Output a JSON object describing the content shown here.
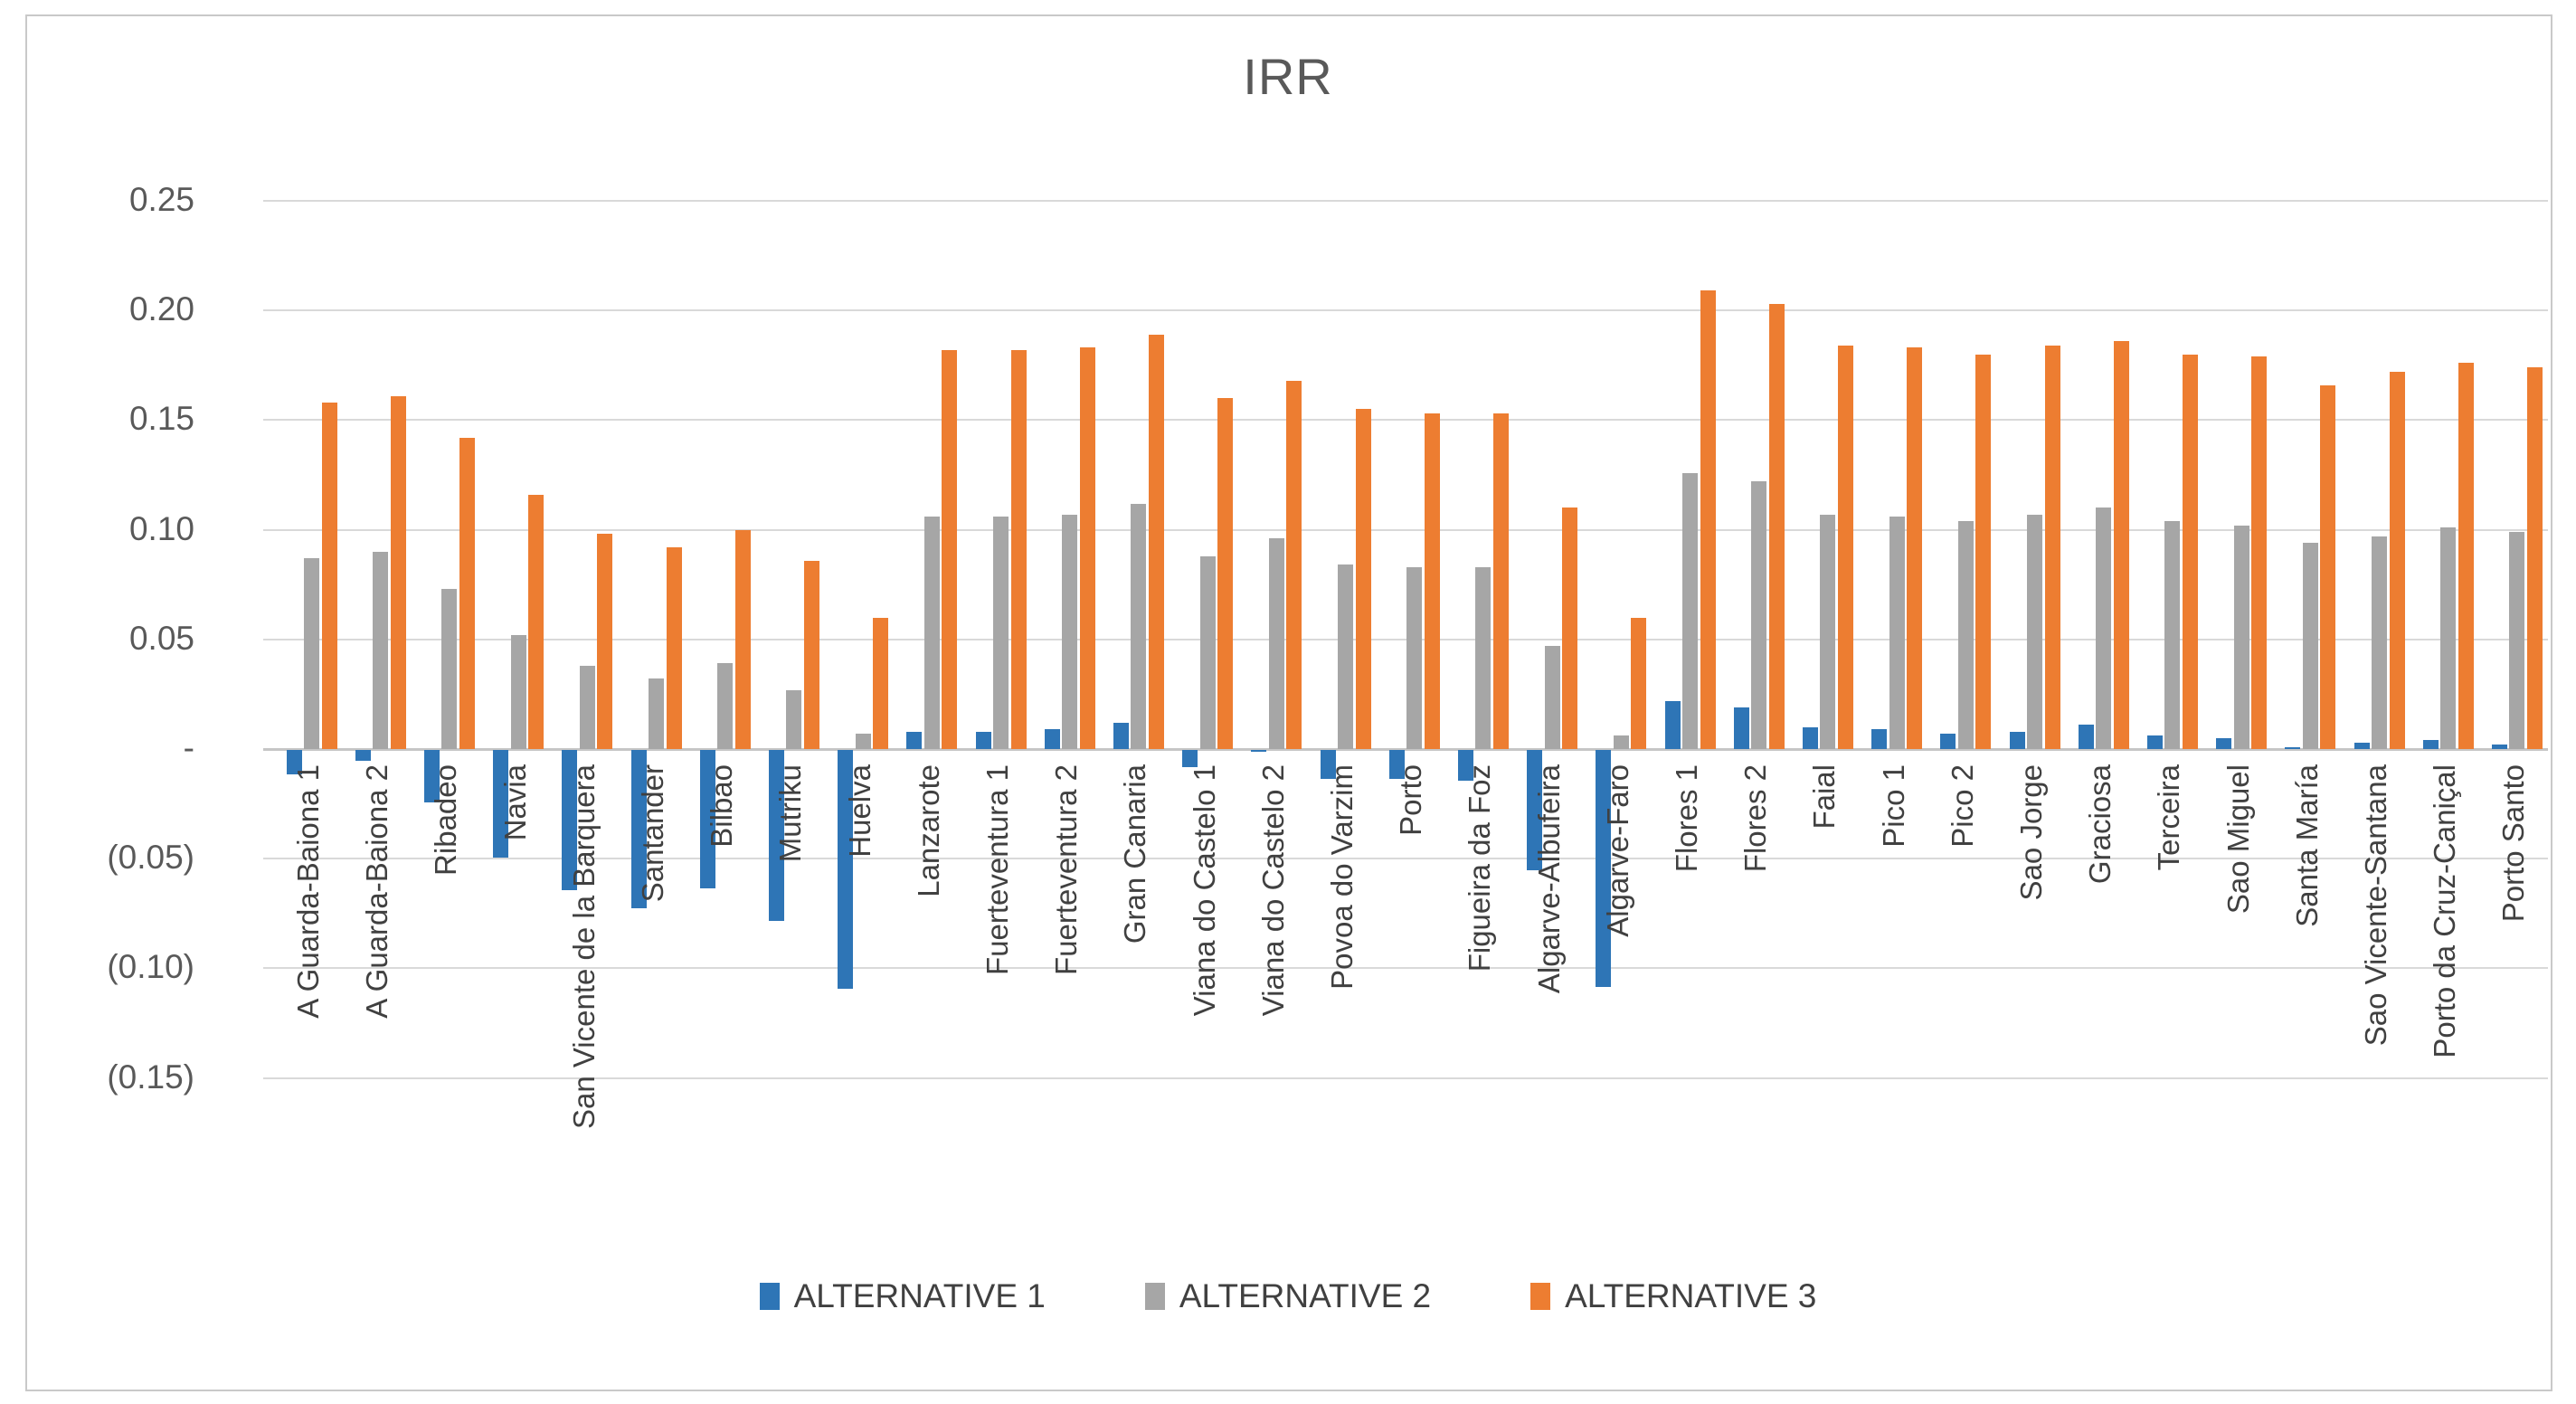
{
  "title": "IRR",
  "colors": {
    "alt1_blue": "#2E75B6",
    "alt2_gray": "#A6A6A6",
    "alt3_orange": "#ED7D31",
    "gridline": "#D9D9D9",
    "axis_text": "#595959",
    "category_text": "#404040",
    "border": "#C9C9C9"
  },
  "chart_data": {
    "type": "bar",
    "title": "IRR",
    "xlabel": "",
    "ylabel": "",
    "ylim": [
      -0.15,
      0.25
    ],
    "grid": true,
    "legend_position": "bottom",
    "yticks": [
      {
        "value": 0.25,
        "label": "0.25"
      },
      {
        "value": 0.2,
        "label": "0.20"
      },
      {
        "value": 0.15,
        "label": "0.15"
      },
      {
        "value": 0.1,
        "label": "0.10"
      },
      {
        "value": 0.05,
        "label": "0.05"
      },
      {
        "value": 0.0,
        "label": "-"
      },
      {
        "value": -0.05,
        "label": "(0.05)"
      },
      {
        "value": -0.1,
        "label": "(0.10)"
      },
      {
        "value": -0.15,
        "label": "(0.15)"
      }
    ],
    "categories": [
      "A Guarda-Baiona 1",
      "A Guarda-Baiona 2",
      "Ribadeo",
      "Navia",
      "San Vicente de la Barquera",
      "Santander",
      "Bilbao",
      "Mutriku",
      "Huelva",
      "Lanzarote",
      "Fuerteventura 1",
      "Fuerteventura 2",
      "Gran Canaria",
      "Viana do Castelo 1",
      "Viana do Castelo 2",
      "Povoa do Varzim",
      "Porto",
      "Figueira da Foz",
      "Algarve-Albufeira",
      "Algarve-Faro",
      "Flores 1",
      "Flores 2",
      "Faial",
      "Pico 1",
      "Pico 2",
      "Sao Jorge",
      "Graciosa",
      "Terceira",
      "Sao Miguel",
      "Santa María",
      "Sao Vicente-Santana",
      "Porto da Cruz-Caniçal",
      "Porto Santo"
    ],
    "series": [
      {
        "name": "ALTERNATIVE 1",
        "color": "#2E75B6",
        "values": [
          -0.011,
          -0.005,
          -0.024,
          -0.049,
          -0.064,
          -0.072,
          -0.063,
          -0.078,
          -0.109,
          0.008,
          0.008,
          0.009,
          0.012,
          -0.008,
          -0.001,
          -0.013,
          -0.013,
          -0.014,
          -0.055,
          -0.108,
          0.022,
          0.019,
          0.01,
          0.009,
          0.007,
          0.008,
          0.011,
          0.006,
          0.005,
          0.001,
          0.003,
          0.004,
          0.002
        ]
      },
      {
        "name": "ALTERNATIVE 2",
        "color": "#A6A6A6",
        "values": [
          0.087,
          0.09,
          0.073,
          0.052,
          0.038,
          0.032,
          0.039,
          0.027,
          0.007,
          0.106,
          0.106,
          0.107,
          0.112,
          0.088,
          0.096,
          0.084,
          0.083,
          0.083,
          0.047,
          0.006,
          0.126,
          0.122,
          0.107,
          0.106,
          0.104,
          0.107,
          0.11,
          0.104,
          0.102,
          0.094,
          0.097,
          0.101,
          0.099
        ]
      },
      {
        "name": "ALTERNATIVE 3",
        "color": "#ED7D31",
        "values": [
          0.158,
          0.161,
          0.142,
          0.116,
          0.098,
          0.092,
          0.1,
          0.086,
          0.06,
          0.182,
          0.182,
          0.183,
          0.189,
          0.16,
          0.168,
          0.155,
          0.153,
          0.153,
          0.11,
          0.06,
          0.209,
          0.203,
          0.184,
          0.183,
          0.18,
          0.184,
          0.186,
          0.18,
          0.179,
          0.166,
          0.172,
          0.176,
          0.174
        ]
      }
    ]
  }
}
